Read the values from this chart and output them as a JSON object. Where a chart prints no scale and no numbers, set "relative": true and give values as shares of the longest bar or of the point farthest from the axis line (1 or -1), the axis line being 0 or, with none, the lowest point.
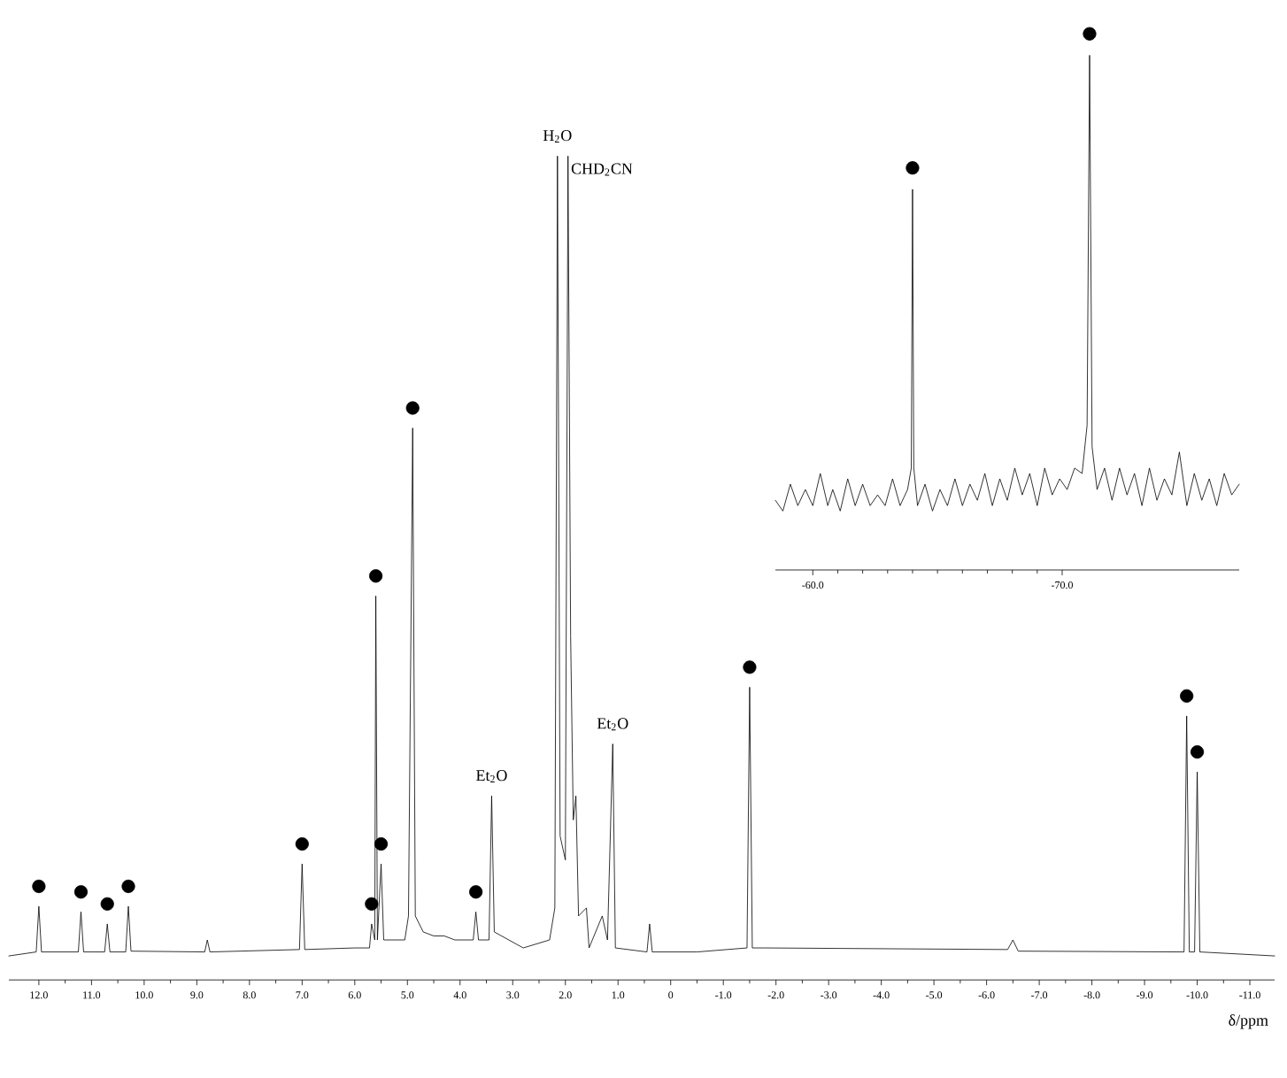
{
  "chart_data": [
    {
      "type": "line",
      "relative": true,
      "xlabel": "δ/ppm",
      "xlim": [
        12.57,
        -11.47
      ],
      "xticks": [
        {
          "value": 12,
          "label": "12.0"
        },
        {
          "value": 11,
          "label": "11.0"
        },
        {
          "value": 10,
          "label": "10.0"
        },
        {
          "value": 9,
          "label": "9.0"
        },
        {
          "value": 8,
          "label": "8.0"
        },
        {
          "value": 7,
          "label": "7.0"
        },
        {
          "value": 6,
          "label": "6.0"
        },
        {
          "value": 5,
          "label": "5.0"
        },
        {
          "value": 4,
          "label": "4.0"
        },
        {
          "value": 3,
          "label": "3.0"
        },
        {
          "value": 2,
          "label": "2.0"
        },
        {
          "value": 1,
          "label": "1.0"
        },
        0,
        {
          "value": -1,
          "label": "-1.0"
        },
        {
          "value": -2,
          "label": "-2.0"
        },
        {
          "value": -3,
          "label": "-3.0"
        },
        {
          "value": -4,
          "label": "-4.0"
        },
        {
          "value": -5,
          "label": "-5.0"
        },
        {
          "value": -6,
          "label": "-6.0"
        },
        {
          "value": -7,
          "label": "-7.0"
        },
        {
          "value": -8,
          "label": "-8.0"
        },
        {
          "value": -9,
          "label": "-9.0"
        },
        {
          "value": -10,
          "label": "-10.0"
        },
        {
          "value": -11,
          "label": "-11.0"
        }
      ],
      "tick_labels": "x",
      "annotations": [
        {
          "text": "H$_{2}$O",
          "x": 2.15,
          "y": 1.0
        },
        {
          "text": "CHD$_{2}$CN",
          "x": 1.95,
          "y": 0.97
        },
        {
          "text": "Et$_{2}$O",
          "x": 3.4,
          "y": 0.2
        },
        {
          "text": "Et$_{2}$O",
          "x": 1.1,
          "y": 0.265
        }
      ],
      "series": [
        {
          "color": "#000000",
          "x": [
            12.57,
            12.05,
            12.0,
            11.95,
            11.25,
            11.2,
            11.15,
            10.75,
            10.7,
            10.65,
            10.35,
            10.3,
            10.25,
            8.85,
            8.8,
            8.75,
            7.05,
            7.0,
            6.95,
            6.0,
            5.72,
            5.68,
            5.62,
            5.6,
            5.57,
            5.5,
            5.45,
            5.05,
            4.98,
            4.9,
            4.85,
            4.7,
            4.5,
            4.3,
            4.1,
            3.75,
            3.7,
            3.65,
            3.45,
            3.4,
            3.35,
            2.8,
            2.3,
            2.2,
            2.15,
            2.1,
            2.0,
            1.95,
            1.9,
            1.85,
            1.8,
            1.75,
            1.6,
            1.55,
            1.3,
            1.2,
            1.1,
            1.05,
            0.45,
            0.4,
            0.35,
            -0.5,
            -1.45,
            -1.5,
            -1.55,
            -1.8,
            -6.4,
            -6.5,
            -6.6,
            -9.75,
            -9.8,
            -9.85,
            -9.95,
            -10.0,
            -10.05,
            -11.47
          ],
          "values": [
            0,
            0.005,
            0.062,
            0.005,
            0.005,
            0.055,
            0.005,
            0.005,
            0.04,
            0.005,
            0.005,
            0.062,
            0.006,
            0.005,
            0.02,
            0.005,
            0.008,
            0.115,
            0.008,
            0.01,
            0.01,
            0.04,
            0.02,
            0.45,
            0.02,
            0.115,
            0.02,
            0.02,
            0.05,
            0.66,
            0.05,
            0.03,
            0.025,
            0.025,
            0.02,
            0.02,
            0.055,
            0.02,
            0.02,
            0.2,
            0.03,
            0.01,
            0.02,
            0.06,
            1.0,
            0.15,
            0.12,
            1.0,
            0.4,
            0.17,
            0.2,
            0.05,
            0.06,
            0.01,
            0.05,
            0.02,
            0.265,
            0.01,
            0.005,
            0.04,
            0.005,
            0.005,
            0.01,
            0.336,
            0.01,
            0.01,
            0.008,
            0.02,
            0.006,
            0.005,
            0.3,
            0.005,
            0.005,
            0.23,
            0.005,
            0
          ]
        },
        {
          "type": "scatter",
          "marker": "circle",
          "color": "#000000",
          "x": [
            12.0,
            11.2,
            10.7,
            10.3,
            7.0,
            5.68,
            5.6,
            5.5,
            4.9,
            3.7,
            -1.5,
            -9.8,
            -10.0
          ],
          "values": [
            0.087,
            0.08,
            0.065,
            0.087,
            0.14,
            0.065,
            0.475,
            0.14,
            0.685,
            0.08,
            0.361,
            0.325,
            0.255
          ]
        }
      ]
    },
    {
      "type": "line",
      "relative": true,
      "xlim": [
        -58.5,
        -77.1
      ],
      "xticks": [
        {
          "value": -60,
          "label": "-60.0"
        },
        {
          "value": -70,
          "label": "-70.0"
        }
      ],
      "tick_labels": "x",
      "series": [
        {
          "color": "#000000",
          "x": [
            -58.5,
            -58.8,
            -59.1,
            -59.4,
            -59.7,
            -60.0,
            -60.3,
            -60.6,
            -60.8,
            -61.1,
            -61.4,
            -61.7,
            -62.0,
            -62.3,
            -62.6,
            -62.9,
            -63.2,
            -63.5,
            -63.8,
            -63.95,
            -64.0,
            -64.05,
            -64.2,
            -64.5,
            -64.8,
            -65.1,
            -65.4,
            -65.7,
            -66.0,
            -66.3,
            -66.6,
            -66.9,
            -67.2,
            -67.5,
            -67.8,
            -68.1,
            -68.4,
            -68.7,
            -69.0,
            -69.3,
            -69.6,
            -69.9,
            -70.2,
            -70.5,
            -70.8,
            -71.0,
            -71.1,
            -71.2,
            -71.4,
            -71.7,
            -72.0,
            -72.3,
            -72.6,
            -72.9,
            -73.2,
            -73.5,
            -73.8,
            -74.1,
            -74.4,
            -74.7,
            -75.0,
            -75.3,
            -75.6,
            -75.9,
            -76.2,
            -76.5,
            -76.8,
            -77.1
          ],
          "values": [
            0.13,
            0.11,
            0.16,
            0.12,
            0.15,
            0.12,
            0.18,
            0.12,
            0.15,
            0.11,
            0.17,
            0.12,
            0.16,
            0.12,
            0.14,
            0.12,
            0.17,
            0.12,
            0.15,
            0.19,
            0.71,
            0.19,
            0.12,
            0.16,
            0.11,
            0.15,
            0.12,
            0.17,
            0.12,
            0.16,
            0.13,
            0.18,
            0.12,
            0.17,
            0.13,
            0.19,
            0.14,
            0.18,
            0.12,
            0.19,
            0.14,
            0.17,
            0.15,
            0.19,
            0.18,
            0.27,
            0.96,
            0.23,
            0.15,
            0.19,
            0.13,
            0.19,
            0.14,
            0.18,
            0.12,
            0.19,
            0.13,
            0.17,
            0.14,
            0.22,
            0.12,
            0.18,
            0.13,
            0.17,
            0.12,
            0.18,
            0.14,
            0.16
          ]
        },
        {
          "type": "scatter",
          "marker": "circle",
          "color": "#000000",
          "x": [
            -64.0,
            -71.1
          ],
          "values": [
            0.75,
            1.0
          ]
        }
      ]
    }
  ]
}
